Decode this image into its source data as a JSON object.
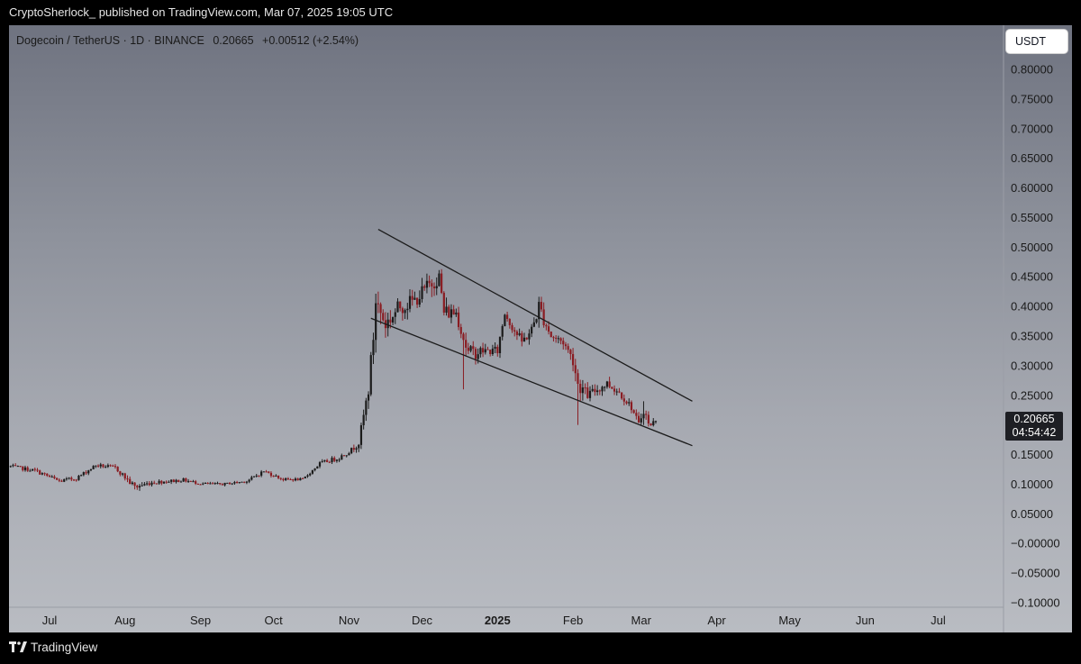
{
  "header": {
    "published_text": "CryptoSherlock_ published on TradingView.com, Mar 07, 2025 19:05 UTC"
  },
  "legend": {
    "symbol": "Dogecoin / TetherUS · 1D · BINANCE",
    "last_price": "0.20665",
    "change": "+0.00512 (+2.54%)"
  },
  "currency_button": "USDT",
  "price_tag": {
    "price": "0.20665",
    "countdown": "04:54:42"
  },
  "footer": {
    "brand": "TradingView"
  },
  "colors": {
    "up": "#1b1b1b",
    "down": "#8a1c22",
    "trendline": "#1b1b1b",
    "axis_text": "#1a1a1a"
  },
  "chart_data": {
    "type": "candlestick",
    "title": "",
    "xlabel": "",
    "ylabel": "",
    "ylim": [
      -0.1,
      0.8
    ],
    "y_ticks": [
      "0.80000",
      "0.75000",
      "0.70000",
      "0.65000",
      "0.60000",
      "0.55000",
      "0.50000",
      "0.45000",
      "0.40000",
      "0.35000",
      "0.30000",
      "0.25000",
      "0.20000",
      "0.15000",
      "0.10000",
      "0.05000",
      "−0.00000",
      "−0.05000",
      "−0.10000"
    ],
    "x_ticks": [
      {
        "label": "Jul",
        "date": "2024-07-01",
        "bold": false
      },
      {
        "label": "Aug",
        "date": "2024-08-01",
        "bold": false
      },
      {
        "label": "Sep",
        "date": "2024-09-01",
        "bold": false
      },
      {
        "label": "Oct",
        "date": "2024-10-01",
        "bold": false
      },
      {
        "label": "Nov",
        "date": "2024-11-01",
        "bold": false
      },
      {
        "label": "Dec",
        "date": "2024-12-01",
        "bold": false
      },
      {
        "label": "2025",
        "date": "2025-01-01",
        "bold": true
      },
      {
        "label": "Feb",
        "date": "2025-02-01",
        "bold": false
      },
      {
        "label": "Mar",
        "date": "2025-03-01",
        "bold": false
      },
      {
        "label": "Apr",
        "date": "2025-04-01",
        "bold": false
      },
      {
        "label": "May",
        "date": "2025-05-01",
        "bold": false
      },
      {
        "label": "Jun",
        "date": "2025-06-01",
        "bold": false
      },
      {
        "label": "Jul",
        "date": "2025-07-01",
        "bold": false
      }
    ],
    "anchors": [
      [
        "2024-06-15",
        0.13,
        0.003
      ],
      [
        "2024-06-25",
        0.123,
        0.003
      ],
      [
        "2024-07-05",
        0.105,
        0.004
      ],
      [
        "2024-07-12",
        0.11,
        0.003
      ],
      [
        "2024-07-20",
        0.132,
        0.003
      ],
      [
        "2024-07-28",
        0.128,
        0.003
      ],
      [
        "2024-08-05",
        0.095,
        0.006
      ],
      [
        "2024-08-12",
        0.103,
        0.003
      ],
      [
        "2024-08-25",
        0.107,
        0.003
      ],
      [
        "2024-09-01",
        0.101,
        0.002
      ],
      [
        "2024-09-10",
        0.1,
        0.002
      ],
      [
        "2024-09-20",
        0.105,
        0.002
      ],
      [
        "2024-09-27",
        0.122,
        0.003
      ],
      [
        "2024-10-05",
        0.108,
        0.002
      ],
      [
        "2024-10-13",
        0.108,
        0.002
      ],
      [
        "2024-10-20",
        0.135,
        0.003
      ],
      [
        "2024-10-28",
        0.145,
        0.004
      ],
      [
        "2024-11-02",
        0.158,
        0.004
      ],
      [
        "2024-11-05",
        0.17,
        0.006
      ],
      [
        "2024-11-09",
        0.26,
        0.012
      ],
      [
        "2024-11-11",
        0.35,
        0.018
      ],
      [
        "2024-11-12",
        0.41,
        0.02
      ],
      [
        "2024-11-16",
        0.37,
        0.015
      ],
      [
        "2024-11-22",
        0.4,
        0.015
      ],
      [
        "2024-11-28",
        0.41,
        0.012
      ],
      [
        "2024-12-05",
        0.44,
        0.015
      ],
      [
        "2024-12-08",
        0.45,
        0.012
      ],
      [
        "2024-12-10",
        0.39,
        0.015
      ],
      [
        "2024-12-15",
        0.39,
        0.01
      ],
      [
        "2024-12-20",
        0.32,
        0.015
      ],
      [
        "2024-12-26",
        0.325,
        0.008
      ],
      [
        "2025-01-01",
        0.325,
        0.008
      ],
      [
        "2025-01-04",
        0.39,
        0.01
      ],
      [
        "2025-01-08",
        0.36,
        0.01
      ],
      [
        "2025-01-11",
        0.34,
        0.008
      ],
      [
        "2025-01-15",
        0.36,
        0.01
      ],
      [
        "2025-01-18",
        0.4,
        0.015
      ],
      [
        "2025-01-23",
        0.35,
        0.01
      ],
      [
        "2025-01-28",
        0.34,
        0.008
      ],
      [
        "2025-02-01",
        0.31,
        0.01
      ],
      [
        "2025-02-03",
        0.27,
        0.015
      ],
      [
        "2025-02-07",
        0.25,
        0.008
      ],
      [
        "2025-02-15",
        0.27,
        0.008
      ],
      [
        "2025-02-20",
        0.255,
        0.006
      ],
      [
        "2025-02-25",
        0.23,
        0.006
      ],
      [
        "2025-02-28",
        0.2,
        0.006
      ],
      [
        "2025-03-02",
        0.23,
        0.012
      ],
      [
        "2025-03-04",
        0.2,
        0.006
      ],
      [
        "2025-03-07",
        0.20665,
        0.004
      ]
    ],
    "spikes": [
      {
        "date": "2024-12-18",
        "low": 0.26
      },
      {
        "date": "2025-02-03",
        "low": 0.2
      },
      {
        "date": "2025-03-02",
        "high": 0.24
      }
    ],
    "trendlines": [
      {
        "from": [
          "2024-11-13",
          0.53
        ],
        "to": [
          "2025-03-22",
          0.24
        ]
      },
      {
        "from": [
          "2024-11-10",
          0.38
        ],
        "to": [
          "2025-03-22",
          0.165
        ]
      }
    ],
    "current_price": 0.20665
  }
}
